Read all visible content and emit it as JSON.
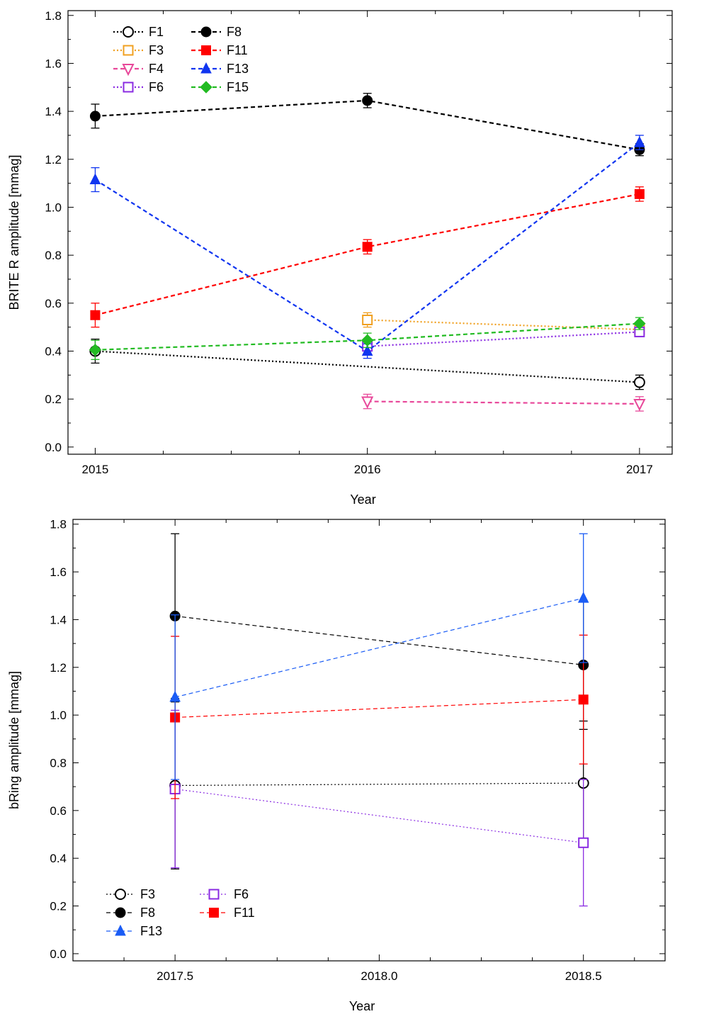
{
  "chart_data": [
    {
      "type": "line",
      "xlabel": "Year",
      "ylabel": "BRITE R amplitude [mmag]",
      "xlim": [
        2014.9,
        2017.12
      ],
      "ylim": [
        -0.03,
        1.82
      ],
      "xticks": [
        2015,
        2016,
        2017
      ],
      "xtick_labels": [
        "2015",
        "2016",
        "2017"
      ],
      "yticks": [
        0.0,
        0.2,
        0.4,
        0.6,
        0.8,
        1.0,
        1.2,
        1.4,
        1.6,
        1.8
      ],
      "ytick_labels": [
        "0.0",
        "0.2",
        "0.4",
        "0.6",
        "0.8",
        "1.0",
        "1.2",
        "1.4",
        "1.6",
        "1.8"
      ],
      "legend_position": "top-left",
      "series": [
        {
          "name": "F1",
          "color": "#000000",
          "marker": "circle-open",
          "dash": "dot",
          "x": [
            2015,
            2017
          ],
          "values": [
            0.4,
            0.27
          ],
          "errors": [
            0.05,
            0.03
          ]
        },
        {
          "name": "F3",
          "color": "#f0a020",
          "marker": "square-open",
          "dash": "dot",
          "x": [
            2016,
            2017
          ],
          "values": [
            0.53,
            0.49
          ],
          "errors": [
            0.03,
            0.02
          ]
        },
        {
          "name": "F4",
          "color": "#e8489a",
          "marker": "triangle-down-open",
          "dash": "dash",
          "x": [
            2016,
            2017
          ],
          "values": [
            0.19,
            0.18
          ],
          "errors": [
            0.03,
            0.03
          ]
        },
        {
          "name": "F6",
          "color": "#8a2be2",
          "marker": "square-open",
          "dash": "dot",
          "x": [
            2016,
            2017
          ],
          "values": [
            0.42,
            0.48
          ],
          "errors": [
            0.02,
            0.02
          ]
        },
        {
          "name": "F8",
          "color": "#000000",
          "marker": "circle",
          "dash": "dash",
          "x": [
            2015,
            2016,
            2017
          ],
          "values": [
            1.38,
            1.445,
            1.24
          ],
          "errors": [
            0.05,
            0.03,
            0.025
          ]
        },
        {
          "name": "F11",
          "color": "#ff0000",
          "marker": "square",
          "dash": "dash",
          "x": [
            2015,
            2016,
            2017
          ],
          "values": [
            0.55,
            0.835,
            1.055
          ],
          "errors": [
            0.05,
            0.03,
            0.03
          ]
        },
        {
          "name": "F13",
          "color": "#1035f0",
          "marker": "triangle-up",
          "dash": "dash",
          "x": [
            2015,
            2016,
            2017
          ],
          "values": [
            1.115,
            0.4,
            1.27
          ],
          "errors": [
            0.05,
            0.03,
            0.03
          ]
        },
        {
          "name": "F15",
          "color": "#22bb22",
          "marker": "diamond",
          "dash": "dash",
          "x": [
            2015,
            2016,
            2017
          ],
          "values": [
            0.405,
            0.445,
            0.515
          ],
          "errors": [
            0.04,
            0.03,
            0.025
          ]
        }
      ]
    },
    {
      "type": "line",
      "xlabel": "Year",
      "ylabel": "bRing amplitude [mmag]",
      "xlim": [
        2017.25,
        2018.7
      ],
      "ylim": [
        -0.03,
        1.82
      ],
      "xticks": [
        2017.5,
        2018.0,
        2018.5
      ],
      "xtick_labels": [
        "2017.5",
        "2018.0",
        "2018.5"
      ],
      "yticks": [
        0.0,
        0.2,
        0.4,
        0.6,
        0.8,
        1.0,
        1.2,
        1.4,
        1.6,
        1.8
      ],
      "ytick_labels": [
        "0.0",
        "0.2",
        "0.4",
        "0.6",
        "0.8",
        "1.0",
        "1.2",
        "1.4",
        "1.6",
        "1.8"
      ],
      "legend_position": "bottom-left",
      "series": [
        {
          "name": "F3",
          "color": "#000000",
          "marker": "circle-open",
          "dash": "dot",
          "x": [
            2017.5,
            2018.5
          ],
          "values": [
            0.705,
            0.715
          ],
          "errors": [
            0.35,
            0.26
          ]
        },
        {
          "name": "F6",
          "color": "#8a2be2",
          "marker": "square-open",
          "dash": "dot",
          "x": [
            2017.5,
            2018.5
          ],
          "values": [
            0.69,
            0.465
          ],
          "errors": [
            0.33,
            0.265
          ]
        },
        {
          "name": "F8",
          "color": "#000000",
          "marker": "circle",
          "dash": "dash",
          "x": [
            2017.5,
            2018.5
          ],
          "values": [
            1.415,
            1.21
          ],
          "errors": [
            0.345,
            0.27
          ]
        },
        {
          "name": "F11",
          "color": "#ff0000",
          "marker": "square",
          "dash": "dash",
          "x": [
            2017.5,
            2018.5
          ],
          "values": [
            0.99,
            1.065
          ],
          "errors": [
            0.34,
            0.27
          ]
        },
        {
          "name": "F13",
          "color": "#1a5cf5",
          "marker": "triangle-up",
          "dash": "dash",
          "x": [
            2017.5,
            2018.5
          ],
          "values": [
            1.075,
            1.49
          ],
          "errors": [
            0.345,
            0.27
          ]
        }
      ]
    }
  ]
}
